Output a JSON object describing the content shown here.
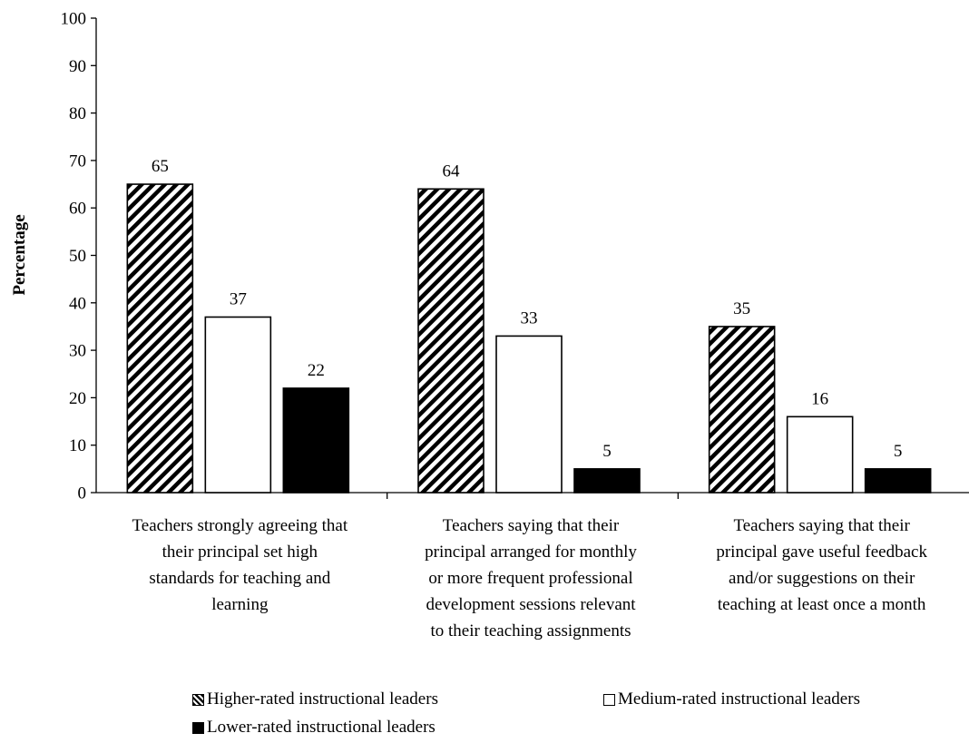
{
  "chart_data": {
    "type": "bar",
    "title": "",
    "xlabel": "",
    "ylabel": "Percentage",
    "ylim": [
      0,
      100
    ],
    "yticks": [
      0,
      10,
      20,
      30,
      40,
      50,
      60,
      70,
      80,
      90,
      100
    ],
    "grid": false,
    "legend_position": "bottom",
    "categories": [
      [
        "Teachers strongly agreeing that",
        "their principal set high",
        "standards for teaching and",
        "learning"
      ],
      [
        "Teachers saying that their",
        "principal arranged for monthly",
        "or more frequent professional",
        "development sessions relevant",
        "to their teaching assignments"
      ],
      [
        "Teachers saying that their",
        "principal gave useful feedback",
        "and/or suggestions on their",
        "teaching at least once a month"
      ]
    ],
    "series": [
      {
        "name": "Higher-rated instructional leaders",
        "values": [
          65,
          64,
          35
        ],
        "fill": "hatch"
      },
      {
        "name": "Medium-rated instructional leaders",
        "values": [
          37,
          33,
          16
        ],
        "fill": "#ffffff"
      },
      {
        "name": "Lower-rated instructional leaders",
        "values": [
          22,
          5,
          5
        ],
        "fill": "#000000"
      }
    ]
  }
}
